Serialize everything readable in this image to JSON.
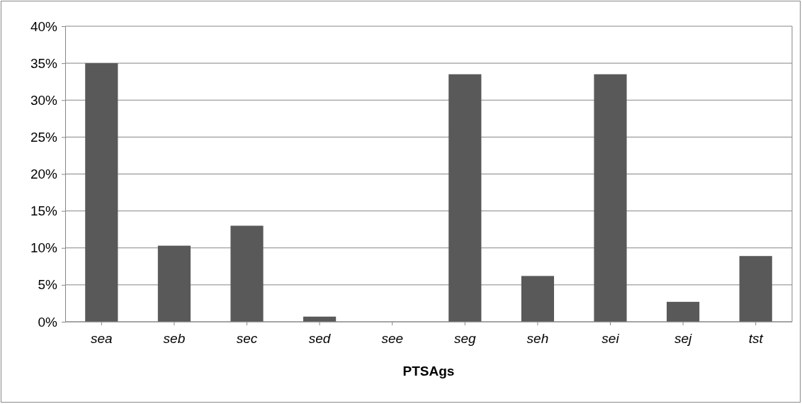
{
  "chart_data": {
    "type": "bar",
    "xlabel": "PTSAgs",
    "categories": [
      "sea",
      "seb",
      "sec",
      "sed",
      "see",
      "seg",
      "seh",
      "sei",
      "sej",
      "tst"
    ],
    "values": [
      35,
      10.3,
      13,
      0.7,
      0,
      33.5,
      6.2,
      33.5,
      2.7,
      8.9
    ],
    "color": "#595959",
    "ylim": [
      0,
      40
    ],
    "yticks": [
      {
        "value": 0,
        "label": "0%"
      },
      {
        "value": 5,
        "label": "5%"
      },
      {
        "value": 10,
        "label": "10%"
      },
      {
        "value": 15,
        "label": "15%"
      },
      {
        "value": 20,
        "label": "20%"
      },
      {
        "value": 25,
        "label": "25%"
      },
      {
        "value": 30,
        "label": "30%"
      },
      {
        "value": 35,
        "label": "35%"
      },
      {
        "value": 40,
        "label": "40%"
      }
    ],
    "grid": "y"
  }
}
